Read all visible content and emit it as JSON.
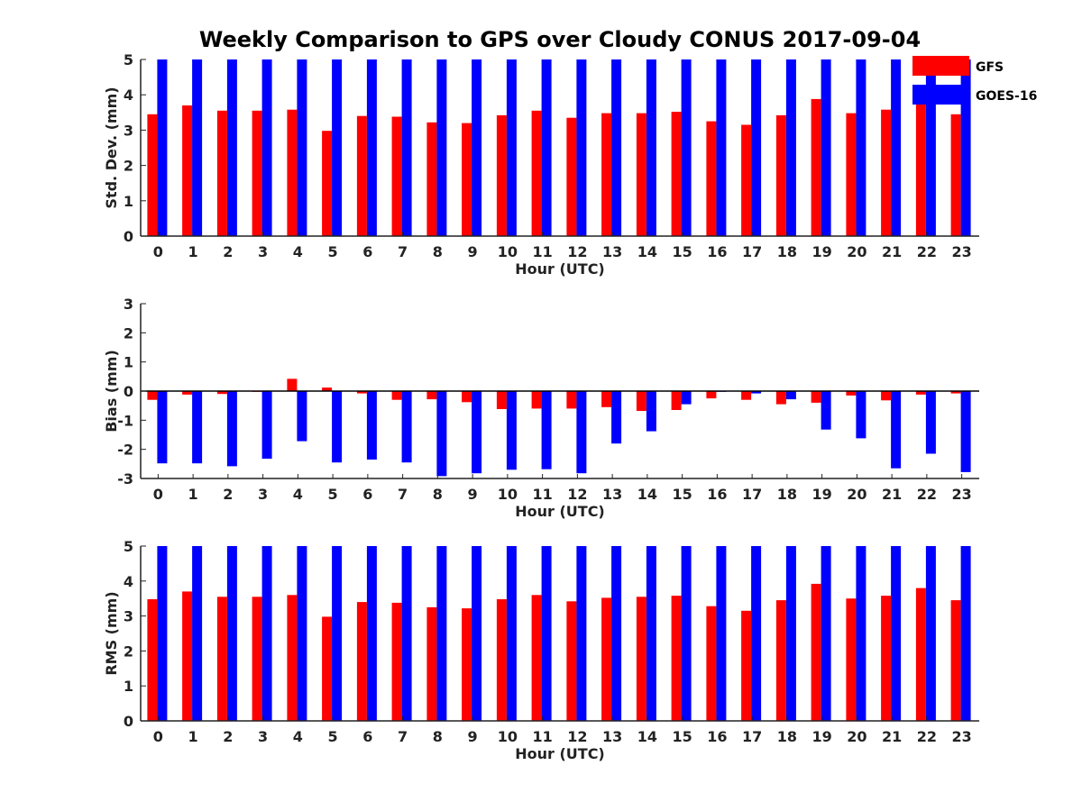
{
  "title": "Weekly Comparison to GPS over Cloudy CONUS 2017-09-04",
  "colors": {
    "GFS": "#ff0000",
    "GOES-16": "#0000ff"
  },
  "chart_data": [
    {
      "type": "bar",
      "ylabel": "Std. Dev. (mm)",
      "xlabel": "Hour (UTC)",
      "ylim": [
        0,
        5
      ],
      "yticks": [
        0,
        1,
        2,
        3,
        4,
        5
      ],
      "categories": [
        "0",
        "1",
        "2",
        "3",
        "4",
        "5",
        "6",
        "7",
        "8",
        "9",
        "10",
        "11",
        "12",
        "13",
        "14",
        "15",
        "16",
        "17",
        "18",
        "19",
        "20",
        "21",
        "22",
        "23"
      ],
      "legend": "top-right",
      "series": [
        {
          "name": "GFS",
          "values": [
            3.45,
            3.7,
            3.55,
            3.55,
            3.58,
            2.98,
            3.4,
            3.38,
            3.22,
            3.2,
            3.42,
            3.55,
            3.35,
            3.48,
            3.48,
            3.52,
            3.25,
            3.15,
            3.42,
            3.88,
            3.48,
            3.58,
            3.8,
            3.45
          ]
        },
        {
          "name": "GOES-16",
          "values": [
            5,
            5,
            5,
            5,
            5,
            5,
            5,
            5,
            5,
            5,
            5,
            5,
            5,
            5,
            5,
            5,
            5,
            5,
            5,
            5,
            5,
            5,
            5,
            5
          ]
        }
      ]
    },
    {
      "type": "bar",
      "ylabel": "Bias (mm)",
      "xlabel": "Hour (UTC)",
      "ylim": [
        -3,
        3
      ],
      "yticks": [
        -3,
        -2,
        -1,
        0,
        1,
        2,
        3
      ],
      "categories": [
        "0",
        "1",
        "2",
        "3",
        "4",
        "5",
        "6",
        "7",
        "8",
        "9",
        "10",
        "11",
        "12",
        "13",
        "14",
        "15",
        "16",
        "17",
        "18",
        "19",
        "20",
        "21",
        "22",
        "23"
      ],
      "series": [
        {
          "name": "GFS",
          "values": [
            -0.3,
            -0.12,
            -0.1,
            0.0,
            0.42,
            0.12,
            -0.08,
            -0.3,
            -0.28,
            -0.38,
            -0.62,
            -0.6,
            -0.6,
            -0.55,
            -0.68,
            -0.65,
            -0.25,
            -0.3,
            -0.45,
            -0.4,
            -0.15,
            -0.32,
            -0.12,
            -0.08
          ]
        },
        {
          "name": "GOES-16",
          "values": [
            -2.48,
            -2.48,
            -2.58,
            -2.32,
            -1.72,
            -2.45,
            -2.35,
            -2.45,
            -2.92,
            -2.82,
            -2.7,
            -2.68,
            -2.82,
            -1.8,
            -1.38,
            -0.45,
            0.0,
            -0.08,
            -0.28,
            -1.32,
            -1.62,
            -2.65,
            -2.15,
            -2.78
          ]
        }
      ]
    },
    {
      "type": "bar",
      "ylabel": "RMS (mm)",
      "xlabel": "Hour (UTC)",
      "ylim": [
        0,
        5
      ],
      "yticks": [
        0,
        1,
        2,
        3,
        4,
        5
      ],
      "categories": [
        "0",
        "1",
        "2",
        "3",
        "4",
        "5",
        "6",
        "7",
        "8",
        "9",
        "10",
        "11",
        "12",
        "13",
        "14",
        "15",
        "16",
        "17",
        "18",
        "19",
        "20",
        "21",
        "22",
        "23"
      ],
      "series": [
        {
          "name": "GFS",
          "values": [
            3.48,
            3.7,
            3.55,
            3.55,
            3.6,
            2.98,
            3.4,
            3.38,
            3.25,
            3.22,
            3.48,
            3.6,
            3.42,
            3.52,
            3.55,
            3.58,
            3.28,
            3.15,
            3.45,
            3.92,
            3.5,
            3.58,
            3.8,
            3.45
          ]
        },
        {
          "name": "GOES-16",
          "values": [
            5,
            5,
            5,
            5,
            5,
            5,
            5,
            5,
            5,
            5,
            5,
            5,
            5,
            5,
            5,
            5,
            5,
            5,
            5,
            5,
            5,
            5,
            5,
            5
          ]
        }
      ]
    }
  ]
}
